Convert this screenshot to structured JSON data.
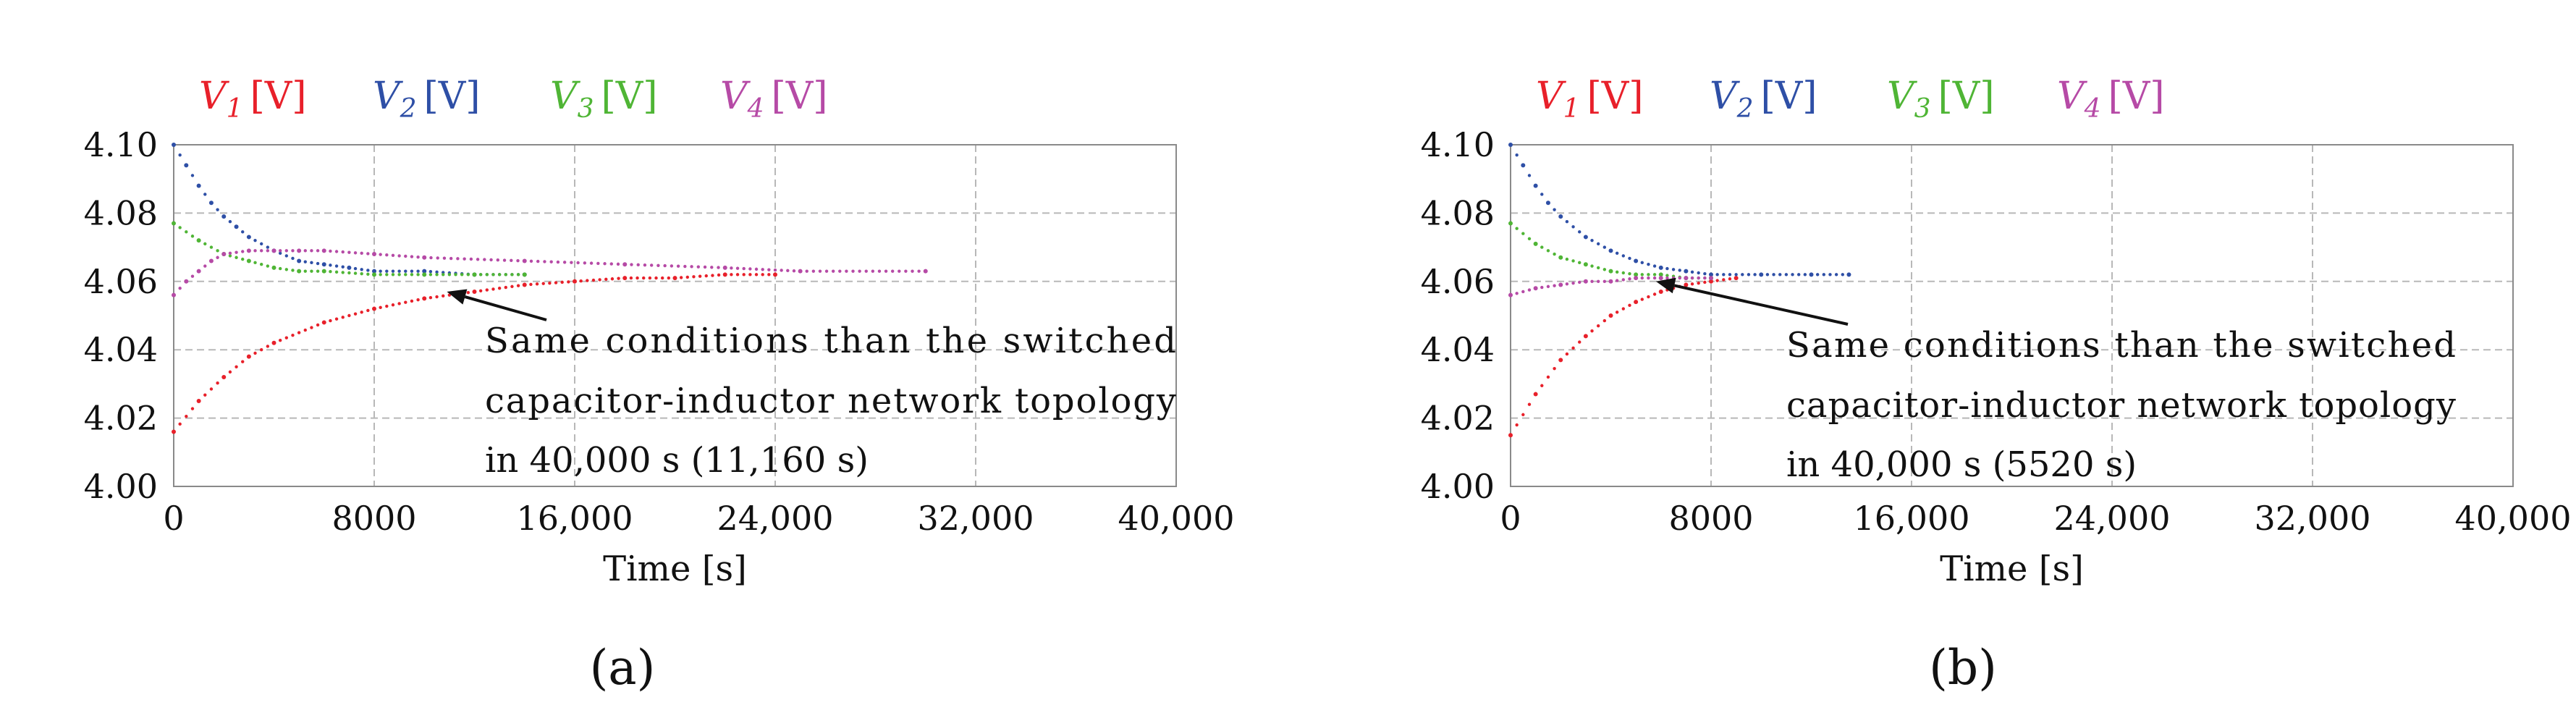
{
  "chart_data": [
    {
      "type": "scatter",
      "panel_label": "(a)",
      "xlabel": "Time [s]",
      "ylabel": "",
      "xlim": [
        0,
        40000
      ],
      "ylim": [
        4.0,
        4.1
      ],
      "x_ticks": [
        "0",
        "8000",
        "16,000",
        "24,000",
        "32,000",
        "40,000"
      ],
      "y_ticks": [
        "4.00",
        "4.02",
        "4.04",
        "4.06",
        "4.08",
        "4.10"
      ],
      "grid": true,
      "legend_position": "top",
      "legend": [
        {
          "symbol": "V",
          "sub": "1",
          "unit": "[V]",
          "color": "#e8202a"
        },
        {
          "symbol": "V",
          "sub": "2",
          "unit": "[V]",
          "color": "#2e4fa6"
        },
        {
          "symbol": "V",
          "sub": "3",
          "unit": "[V]",
          "color": "#4fb535"
        },
        {
          "symbol": "V",
          "sub": "4",
          "unit": "[V]",
          "color": "#b64aa6"
        }
      ],
      "annotation": {
        "lines": [
          "Same conditions than the switched",
          "capacitor-inductor network topology",
          "in 40,000 s (11,160 s)"
        ],
        "arrow_target": [
          10900,
          4.057
        ]
      },
      "series": [
        {
          "name": "V1",
          "color": "#e8202a",
          "x": [
            0,
            1000,
            2000,
            3000,
            4000,
            6000,
            8000,
            10000,
            12000,
            14000,
            16000,
            18000,
            20000,
            22000,
            24000
          ],
          "y": [
            4.016,
            4.025,
            4.032,
            4.038,
            4.042,
            4.048,
            4.052,
            4.055,
            4.057,
            4.059,
            4.06,
            4.061,
            4.061,
            4.062,
            4.062
          ]
        },
        {
          "name": "V2",
          "color": "#2e4fa6",
          "x": [
            0,
            500,
            1000,
            1500,
            2000,
            2500,
            3000,
            4000,
            5000,
            6000,
            7000,
            8000,
            10000,
            12000,
            14000
          ],
          "y": [
            4.1,
            4.094,
            4.088,
            4.083,
            4.079,
            4.076,
            4.073,
            4.069,
            4.066,
            4.065,
            4.064,
            4.063,
            4.063,
            4.062,
            4.062
          ]
        },
        {
          "name": "V3",
          "color": "#4fb535",
          "x": [
            0,
            1000,
            2000,
            3000,
            4000,
            5000,
            6000,
            8000,
            10000,
            12000,
            14000
          ],
          "y": [
            4.077,
            4.072,
            4.068,
            4.066,
            4.064,
            4.063,
            4.063,
            4.062,
            4.062,
            4.062,
            4.062
          ]
        },
        {
          "name": "V4",
          "color": "#b64aa6",
          "x": [
            0,
            500,
            1000,
            1500,
            2000,
            3000,
            4000,
            5000,
            6000,
            8000,
            10000,
            14000,
            18000,
            22000,
            25000,
            30000
          ],
          "y": [
            4.056,
            4.06,
            4.063,
            4.066,
            4.068,
            4.069,
            4.069,
            4.069,
            4.069,
            4.068,
            4.067,
            4.066,
            4.065,
            4.064,
            4.063,
            4.063
          ]
        }
      ]
    },
    {
      "type": "scatter",
      "panel_label": "(b)",
      "xlabel": "Time [s]",
      "ylabel": "",
      "xlim": [
        0,
        40000
      ],
      "ylim": [
        4.0,
        4.1
      ],
      "x_ticks": [
        "0",
        "8000",
        "16,000",
        "24,000",
        "32,000",
        "40,000"
      ],
      "y_ticks": [
        "4.00",
        "4.02",
        "4.04",
        "4.06",
        "4.08",
        "4.10"
      ],
      "grid": true,
      "legend_position": "top",
      "legend": [
        {
          "symbol": "V",
          "sub": "1",
          "unit": "[V]",
          "color": "#e8202a"
        },
        {
          "symbol": "V",
          "sub": "2",
          "unit": "[V]",
          "color": "#2e4fa6"
        },
        {
          "symbol": "V",
          "sub": "3",
          "unit": "[V]",
          "color": "#4fb535"
        },
        {
          "symbol": "V",
          "sub": "4",
          "unit": "[V]",
          "color": "#b64aa6"
        }
      ],
      "annotation": {
        "lines": [
          "Same conditions than the switched",
          "capacitor-inductor network topology",
          "in 40,000 s (5520 s)"
        ],
        "arrow_target": [
          5800,
          4.06
        ]
      },
      "series": [
        {
          "name": "V1",
          "color": "#e8202a",
          "x": [
            0,
            1000,
            2000,
            3000,
            4000,
            5000,
            6000,
            7000,
            8000,
            9000
          ],
          "y": [
            4.015,
            4.027,
            4.037,
            4.044,
            4.05,
            4.054,
            4.057,
            4.059,
            4.06,
            4.061
          ]
        },
        {
          "name": "V2",
          "color": "#2e4fa6",
          "x": [
            0,
            500,
            1000,
            1500,
            2000,
            3000,
            4000,
            5000,
            6000,
            7000,
            8000,
            10000,
            12000,
            13500
          ],
          "y": [
            4.1,
            4.094,
            4.088,
            4.083,
            4.079,
            4.073,
            4.069,
            4.066,
            4.064,
            4.063,
            4.062,
            4.062,
            4.062,
            4.062
          ]
        },
        {
          "name": "V3",
          "color": "#4fb535",
          "x": [
            0,
            1000,
            2000,
            3000,
            4000,
            5000,
            6000,
            7000,
            8000
          ],
          "y": [
            4.077,
            4.071,
            4.067,
            4.065,
            4.063,
            4.062,
            4.062,
            4.061,
            4.061
          ]
        },
        {
          "name": "V4",
          "color": "#b64aa6",
          "x": [
            0,
            1000,
            2000,
            3000,
            4000,
            5000,
            6000,
            7000,
            8000
          ],
          "y": [
            4.056,
            4.058,
            4.059,
            4.06,
            4.06,
            4.061,
            4.061,
            4.061,
            4.061
          ]
        }
      ]
    }
  ]
}
